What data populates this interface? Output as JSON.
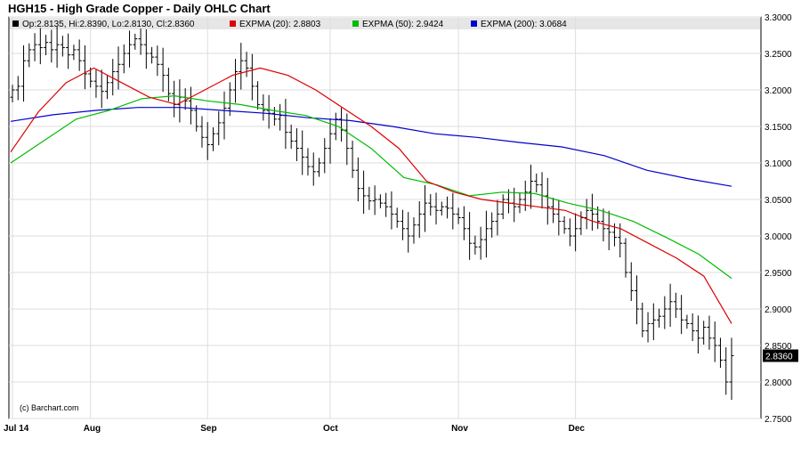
{
  "chart_data": {
    "type": "line",
    "title": "HGH15 - High Grade Copper - Daily OHLC Chart",
    "credit": "(c) Barchart.com",
    "ylim": [
      2.75,
      3.3
    ],
    "y_ticks": [
      "3.3000",
      "3.2500",
      "3.2000",
      "3.1500",
      "3.1000",
      "3.0500",
      "3.0000",
      "2.9500",
      "2.9000",
      "2.8500",
      "2.8000",
      "2.7500"
    ],
    "x_tick_labels": [
      "Jul 14",
      "Aug",
      "Sep",
      "Oct",
      "Nov",
      "Dec"
    ],
    "x_tick_index": [
      0,
      14,
      35,
      57,
      80,
      101
    ],
    "n_bars": 130,
    "grid": true,
    "legend": [
      {
        "name": "Op:2.8135, Hi:2.8390, Lo:2.8130, Cl:2.8360",
        "color": "#000000"
      },
      {
        "name": "EXPMA (20): 2.8803",
        "color": "#dd0000"
      },
      {
        "name": "EXPMA (50): 2.9424",
        "color": "#00bb00"
      },
      {
        "name": "EXPMA (200): 3.0684",
        "color": "#0000cc"
      }
    ],
    "last_value_label": "2.8360",
    "close": [
      3.2,
      3.205,
      3.24,
      3.255,
      3.262,
      3.258,
      3.265,
      3.255,
      3.262,
      3.258,
      3.248,
      3.255,
      3.24,
      3.222,
      3.212,
      3.205,
      3.198,
      3.21,
      3.225,
      3.235,
      3.25,
      3.262,
      3.27,
      3.262,
      3.25,
      3.245,
      3.235,
      3.22,
      3.195,
      3.18,
      3.19,
      3.185,
      3.172,
      3.15,
      3.135,
      3.125,
      3.14,
      3.155,
      3.175,
      3.2,
      3.225,
      3.24,
      3.23,
      3.205,
      3.18,
      3.172,
      3.168,
      3.16,
      3.165,
      3.142,
      3.13,
      3.12,
      3.108,
      3.095,
      3.088,
      3.1,
      3.12,
      3.14,
      3.16,
      3.145,
      3.12,
      3.09,
      3.065,
      3.055,
      3.048,
      3.05,
      3.045,
      3.04,
      3.03,
      3.02,
      3.01,
      3.0,
      3.015,
      3.03,
      3.045,
      3.04,
      3.035,
      3.04,
      3.038,
      3.03,
      3.025,
      3.01,
      2.99,
      2.985,
      2.995,
      3.01,
      3.02,
      3.03,
      3.05,
      3.045,
      3.04,
      3.05,
      3.06,
      3.075,
      3.07,
      3.055,
      3.04,
      3.03,
      3.02,
      3.01,
      3.0,
      3.01,
      3.025,
      3.035,
      3.03,
      3.02,
      3.01,
      3.005,
      2.998,
      2.99,
      2.95,
      2.925,
      2.9,
      2.87,
      2.88,
      2.885,
      2.89,
      2.9,
      2.91,
      2.9,
      2.885,
      2.88,
      2.87,
      2.86,
      2.875,
      2.86,
      2.85,
      2.83,
      2.8,
      2.836
    ],
    "expma_20": [
      3.115,
      3.17,
      3.21,
      3.23,
      3.21,
      3.19,
      3.18,
      3.2,
      3.22,
      3.23,
      3.22,
      3.2,
      3.175,
      3.15,
      3.12,
      3.075,
      3.06,
      3.05,
      3.045,
      3.04,
      3.035,
      3.02,
      3.01,
      2.99,
      2.97,
      2.945,
      2.88
    ],
    "expma_50": [
      3.1,
      3.13,
      3.16,
      3.172,
      3.188,
      3.192,
      3.185,
      3.18,
      3.172,
      3.165,
      3.15,
      3.12,
      3.08,
      3.07,
      3.055,
      3.06,
      3.058,
      3.045,
      3.035,
      3.02,
      2.998,
      2.975,
      2.942
    ],
    "expma_200": [
      3.157,
      3.166,
      3.172,
      3.176,
      3.176,
      3.172,
      3.168,
      3.162,
      3.158,
      3.15,
      3.14,
      3.135,
      3.128,
      3.122,
      3.11,
      3.09,
      3.078,
      3.068
    ]
  }
}
